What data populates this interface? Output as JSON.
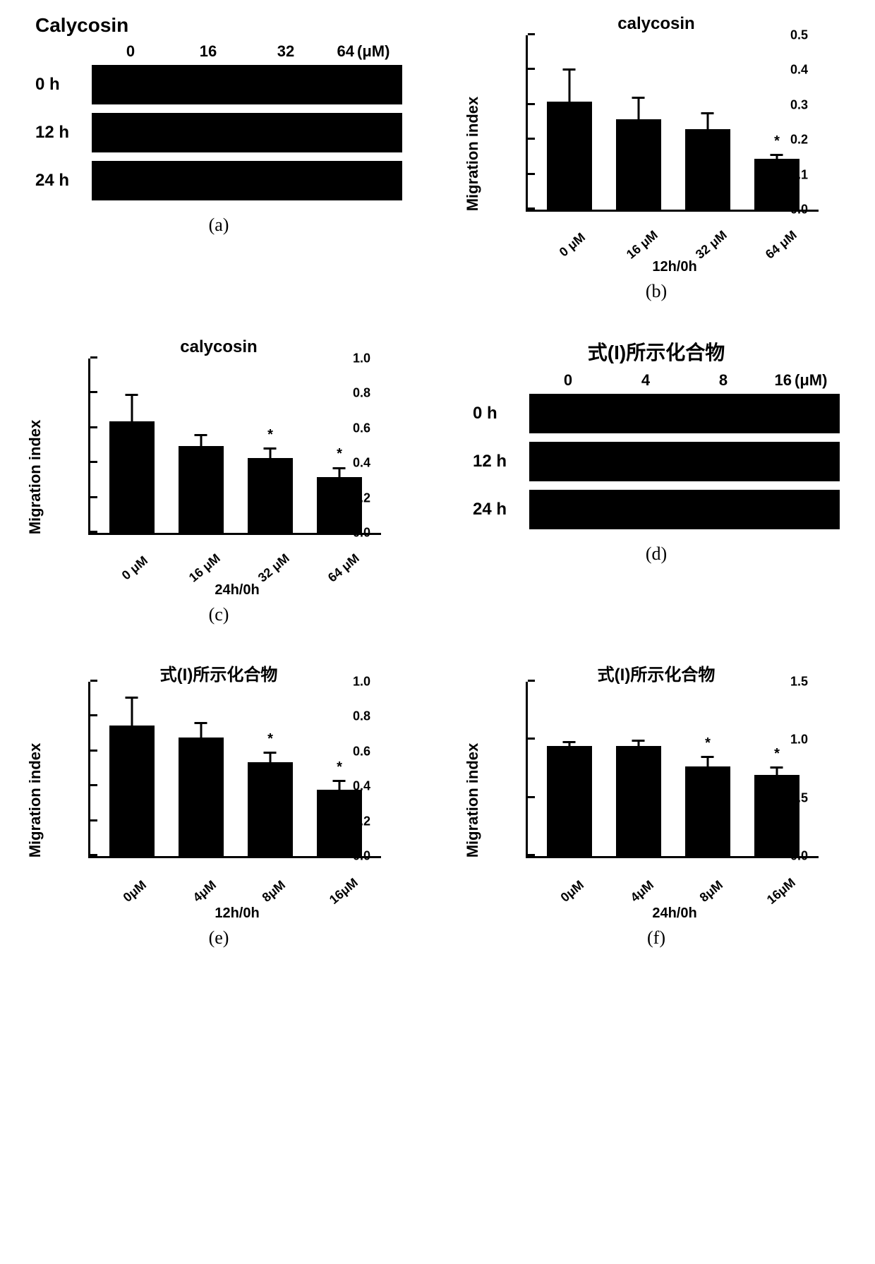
{
  "colors": {
    "bar": "#000000",
    "axis": "#000000",
    "background": "#ffffff",
    "text": "#000000"
  },
  "typography": {
    "panel_label_font": "Times New Roman",
    "panel_label_size_pt": 20,
    "title_size_pt": 18,
    "axis_label_size_pt": 16,
    "tick_label_size_pt": 14
  },
  "panels": {
    "a": {
      "label": "(a)",
      "title": "Calycosin",
      "col_headers": [
        "0",
        "16",
        "32",
        "64"
      ],
      "unit": "(μM)",
      "row_labels": [
        "0 h",
        "12 h",
        "24 h"
      ],
      "strip_color": "#000000"
    },
    "b": {
      "label": "(b)",
      "type": "bar",
      "title": "calycosin",
      "ylabel": "Migration index",
      "xlabel": "12h/0h",
      "ylim": [
        0,
        0.5
      ],
      "ytick_step": 0.1,
      "yticks": [
        "0.0",
        "0.1",
        "0.2",
        "0.3",
        "0.4",
        "0.5"
      ],
      "categories": [
        "0 μM",
        "16 μM",
        "32 μM",
        "64 μM"
      ],
      "values": [
        0.31,
        0.26,
        0.23,
        0.145
      ],
      "errors": [
        0.09,
        0.06,
        0.045,
        0.01
      ],
      "sig": [
        "",
        "",
        "",
        "*"
      ],
      "bar_color": "#000000",
      "bar_width": 0.75
    },
    "c": {
      "label": "(c)",
      "type": "bar",
      "title": "calycosin",
      "ylabel": "Migration index",
      "xlabel": "24h/0h",
      "ylim": [
        0,
        1.0
      ],
      "ytick_step": 0.2,
      "yticks": [
        "0.0",
        "0.2",
        "0.4",
        "0.6",
        "0.8",
        "1.0"
      ],
      "categories": [
        "0 μM",
        "16 μM",
        "32 μM",
        "64 μM"
      ],
      "values": [
        0.64,
        0.5,
        0.43,
        0.32
      ],
      "errors": [
        0.15,
        0.06,
        0.05,
        0.05
      ],
      "sig": [
        "",
        "",
        "*",
        "*"
      ],
      "bar_color": "#000000",
      "bar_width": 0.75
    },
    "d": {
      "label": "(d)",
      "title": "式(I)所示化合物",
      "col_headers": [
        "0",
        "4",
        "8",
        "16"
      ],
      "unit": "(μM)",
      "row_labels": [
        "0 h",
        "12 h",
        "24 h"
      ],
      "strip_color": "#000000"
    },
    "e": {
      "label": "(e)",
      "type": "bar",
      "title": "式(I)所示化合物",
      "ylabel": "Migration index",
      "xlabel": "12h/0h",
      "ylim": [
        0,
        1.0
      ],
      "ytick_step": 0.2,
      "yticks": [
        "0.0",
        "0.2",
        "0.4",
        "0.6",
        "0.8",
        "1.0"
      ],
      "categories": [
        "0μM",
        "4μM",
        "8μM",
        "16μM"
      ],
      "values": [
        0.75,
        0.68,
        0.54,
        0.38
      ],
      "errors": [
        0.155,
        0.08,
        0.05,
        0.05
      ],
      "sig": [
        "",
        "",
        "*",
        "*"
      ],
      "bar_color": "#000000",
      "bar_width": 0.75
    },
    "f": {
      "label": "(f)",
      "type": "bar",
      "title": "式(I)所示化合物",
      "ylabel": "Migration index",
      "xlabel": "24h/0h",
      "ylim": [
        0,
        1.5
      ],
      "ytick_step": 0.5,
      "yticks": [
        "0.0",
        "0.5",
        "1.0",
        "1.5"
      ],
      "categories": [
        "0μM",
        "4μM",
        "8μM",
        "16μM"
      ],
      "values": [
        0.95,
        0.95,
        0.77,
        0.7
      ],
      "errors": [
        0.03,
        0.04,
        0.08,
        0.06
      ],
      "sig": [
        "",
        "",
        "*",
        "*"
      ],
      "bar_color": "#000000",
      "bar_width": 0.75
    }
  }
}
